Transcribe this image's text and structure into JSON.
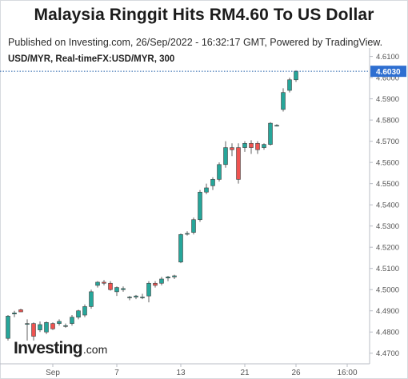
{
  "chart_data": {
    "type": "candlestick",
    "title": "Malaysia Ringgit Hits RM4.60 To US Dollar",
    "subtitle": "Published on Investing.com, 26/Sep/2022 - 16:32:17 GMT, Powered by TradingView.",
    "symbol_label": "USD/MYR, Real-timeFX:USD/MYR, 300",
    "ylim": [
      4.465,
      4.614
    ],
    "yticks": [
      "4.6100",
      "4.6000",
      "4.5900",
      "4.5800",
      "4.5700",
      "4.5600",
      "4.5500",
      "4.5400",
      "4.5300",
      "4.5200",
      "4.5100",
      "4.5000",
      "4.4900",
      "4.4800",
      "4.4700"
    ],
    "x_tick_labels": [
      {
        "label": "Sep",
        "index": 7
      },
      {
        "label": "7",
        "index": 17
      },
      {
        "label": "13",
        "index": 27
      },
      {
        "label": "21",
        "index": 37
      },
      {
        "label": "26",
        "index": 45
      },
      {
        "label": "16:00",
        "index": 53
      }
    ],
    "x_slots": 57,
    "last_price": "4.6030",
    "last_price_value": 4.603,
    "colors": {
      "up": "#26a69a",
      "down": "#ef5350",
      "wick": "#606060",
      "price_line": "#1f5ea8",
      "price_tag": "#2e6fd1",
      "axis_text": "#555555"
    },
    "candles": [
      {
        "o": 4.477,
        "h": 4.488,
        "l": 4.476,
        "c": 4.4875
      },
      {
        "o": 4.4885,
        "h": 4.49,
        "l": 4.487,
        "c": 4.489
      },
      {
        "o": 4.4905,
        "h": 4.491,
        "l": 4.4895,
        "c": 4.4895
      },
      {
        "o": 4.484,
        "h": 4.486,
        "l": 4.476,
        "c": 4.484
      },
      {
        "o": 4.484,
        "h": 4.4845,
        "l": 4.476,
        "c": 4.478
      },
      {
        "o": 4.481,
        "h": 4.485,
        "l": 4.48,
        "c": 4.4835
      },
      {
        "o": 4.48,
        "h": 4.485,
        "l": 4.479,
        "c": 4.4845
      },
      {
        "o": 4.484,
        "h": 4.4845,
        "l": 4.481,
        "c": 4.4815
      },
      {
        "o": 4.484,
        "h": 4.486,
        "l": 4.483,
        "c": 4.485
      },
      {
        "o": 4.483,
        "h": 4.484,
        "l": 4.482,
        "c": 4.483
      },
      {
        "o": 4.484,
        "h": 4.488,
        "l": 4.483,
        "c": 4.487
      },
      {
        "o": 4.487,
        "h": 4.4905,
        "l": 4.486,
        "c": 4.49
      },
      {
        "o": 4.488,
        "h": 4.493,
        "l": 4.487,
        "c": 4.492
      },
      {
        "o": 4.492,
        "h": 4.5,
        "l": 4.491,
        "c": 4.499
      },
      {
        "o": 4.502,
        "h": 4.504,
        "l": 4.501,
        "c": 4.5035
      },
      {
        "o": 4.5035,
        "h": 4.5045,
        "l": 4.502,
        "c": 4.503
      },
      {
        "o": 4.503,
        "h": 4.504,
        "l": 4.4995,
        "c": 4.5
      },
      {
        "o": 4.499,
        "h": 4.5015,
        "l": 4.497,
        "c": 4.501
      },
      {
        "o": 4.5,
        "h": 4.5015,
        "l": 4.499,
        "c": 4.5005
      },
      {
        "o": 4.4965,
        "h": 4.497,
        "l": 4.495,
        "c": 4.4965
      },
      {
        "o": 4.4965,
        "h": 4.4975,
        "l": 4.4955,
        "c": 4.497
      },
      {
        "o": 4.4965,
        "h": 4.498,
        "l": 4.4955,
        "c": 4.4965
      },
      {
        "o": 4.497,
        "h": 4.504,
        "l": 4.494,
        "c": 4.503
      },
      {
        "o": 4.503,
        "h": 4.504,
        "l": 4.501,
        "c": 4.502
      },
      {
        "o": 4.503,
        "h": 4.506,
        "l": 4.502,
        "c": 4.505
      },
      {
        "o": 4.5055,
        "h": 4.5065,
        "l": 4.504,
        "c": 4.506
      },
      {
        "o": 4.506,
        "h": 4.507,
        "l": 4.505,
        "c": 4.5065
      },
      {
        "o": 4.513,
        "h": 4.5265,
        "l": 4.5125,
        "c": 4.526
      },
      {
        "o": 4.5265,
        "h": 4.5275,
        "l": 4.5255,
        "c": 4.5265
      },
      {
        "o": 4.527,
        "h": 4.534,
        "l": 4.526,
        "c": 4.533
      },
      {
        "o": 4.533,
        "h": 4.547,
        "l": 4.532,
        "c": 4.546
      },
      {
        "o": 4.546,
        "h": 4.55,
        "l": 4.545,
        "c": 4.548
      },
      {
        "o": 4.549,
        "h": 4.553,
        "l": 4.547,
        "c": 4.552
      },
      {
        "o": 4.552,
        "h": 4.56,
        "l": 4.551,
        "c": 4.559
      },
      {
        "o": 4.559,
        "h": 4.57,
        "l": 4.5575,
        "c": 4.567
      },
      {
        "o": 4.567,
        "h": 4.569,
        "l": 4.563,
        "c": 4.566
      },
      {
        "o": 4.567,
        "h": 4.569,
        "l": 4.55,
        "c": 4.552
      },
      {
        "o": 4.567,
        "h": 4.57,
        "l": 4.565,
        "c": 4.569
      },
      {
        "o": 4.569,
        "h": 4.5705,
        "l": 4.564,
        "c": 4.567
      },
      {
        "o": 4.569,
        "h": 4.57,
        "l": 4.564,
        "c": 4.566
      },
      {
        "o": 4.567,
        "h": 4.569,
        "l": 4.566,
        "c": 4.5685
      },
      {
        "o": 4.5685,
        "h": 4.579,
        "l": 4.568,
        "c": 4.5785
      },
      {
        "o": 4.5775,
        "h": 4.578,
        "l": 4.577,
        "c": 4.5775
      },
      {
        "o": 4.585,
        "h": 4.595,
        "l": 4.584,
        "c": 4.593
      },
      {
        "o": 4.594,
        "h": 4.6,
        "l": 4.593,
        "c": 4.599
      },
      {
        "o": 4.599,
        "h": 4.6035,
        "l": 4.598,
        "c": 4.603
      }
    ]
  },
  "branding": {
    "logo_main": "Investing",
    "logo_suffix": ".com"
  }
}
